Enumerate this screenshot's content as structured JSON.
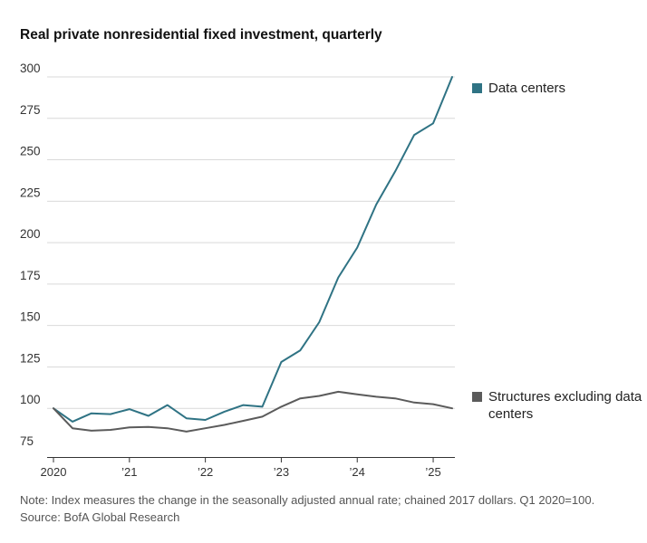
{
  "title": "Real private nonresidential fixed investment, quarterly",
  "note": "Note: Index measures the change in the seasonally adjusted annual rate; chained 2017 dollars. Q1 2020=100.",
  "source": "Source: BofA Global Research",
  "colors": {
    "data_centers": "#2f7384",
    "structures": "#5b5b5b",
    "grid": "#d9d9d9",
    "axis": "#333333"
  },
  "chart_data": {
    "type": "line",
    "title": "Real private nonresidential fixed investment, quarterly",
    "xlabel": "",
    "ylabel": "",
    "ylim": [
      75,
      300
    ],
    "yticks": [
      75,
      100,
      125,
      150,
      175,
      200,
      225,
      250,
      275,
      300
    ],
    "xticks": [
      {
        "label": "2020",
        "index": 0
      },
      {
        "label": "’21",
        "index": 4
      },
      {
        "label": "’22",
        "index": 8
      },
      {
        "label": "’23",
        "index": 12
      },
      {
        "label": "’24",
        "index": 16
      },
      {
        "label": "’25",
        "index": 20
      }
    ],
    "x": [
      "2020 Q1",
      "2020 Q2",
      "2020 Q3",
      "2020 Q4",
      "2021 Q1",
      "2021 Q2",
      "2021 Q3",
      "2021 Q4",
      "2022 Q1",
      "2022 Q2",
      "2022 Q3",
      "2022 Q4",
      "2023 Q1",
      "2023 Q2",
      "2023 Q3",
      "2023 Q4",
      "2024 Q1",
      "2024 Q2",
      "2024 Q3",
      "2024 Q4",
      "2025 Q1",
      "2025 Q2"
    ],
    "series": [
      {
        "name": "Data centers",
        "color_key": "data_centers",
        "values": [
          100,
          92,
          97,
          96.5,
          99.5,
          95.5,
          102,
          94,
          93,
          98,
          102,
          101,
          128,
          135,
          152,
          179,
          197,
          223,
          243,
          265,
          272,
          300
        ]
      },
      {
        "name": "Structures excluding data centers",
        "color_key": "structures",
        "values": [
          100,
          88,
          86.5,
          87,
          88.5,
          88.8,
          88,
          86,
          88,
          90,
          92.5,
          95,
          101,
          106,
          107.5,
          110,
          108.5,
          107,
          106,
          103.5,
          102.5,
          100
        ]
      }
    ],
    "legend": [
      {
        "label": "Data centers",
        "color_key": "data_centers"
      },
      {
        "label": "Structures excluding data centers",
        "color_key": "structures"
      }
    ]
  }
}
